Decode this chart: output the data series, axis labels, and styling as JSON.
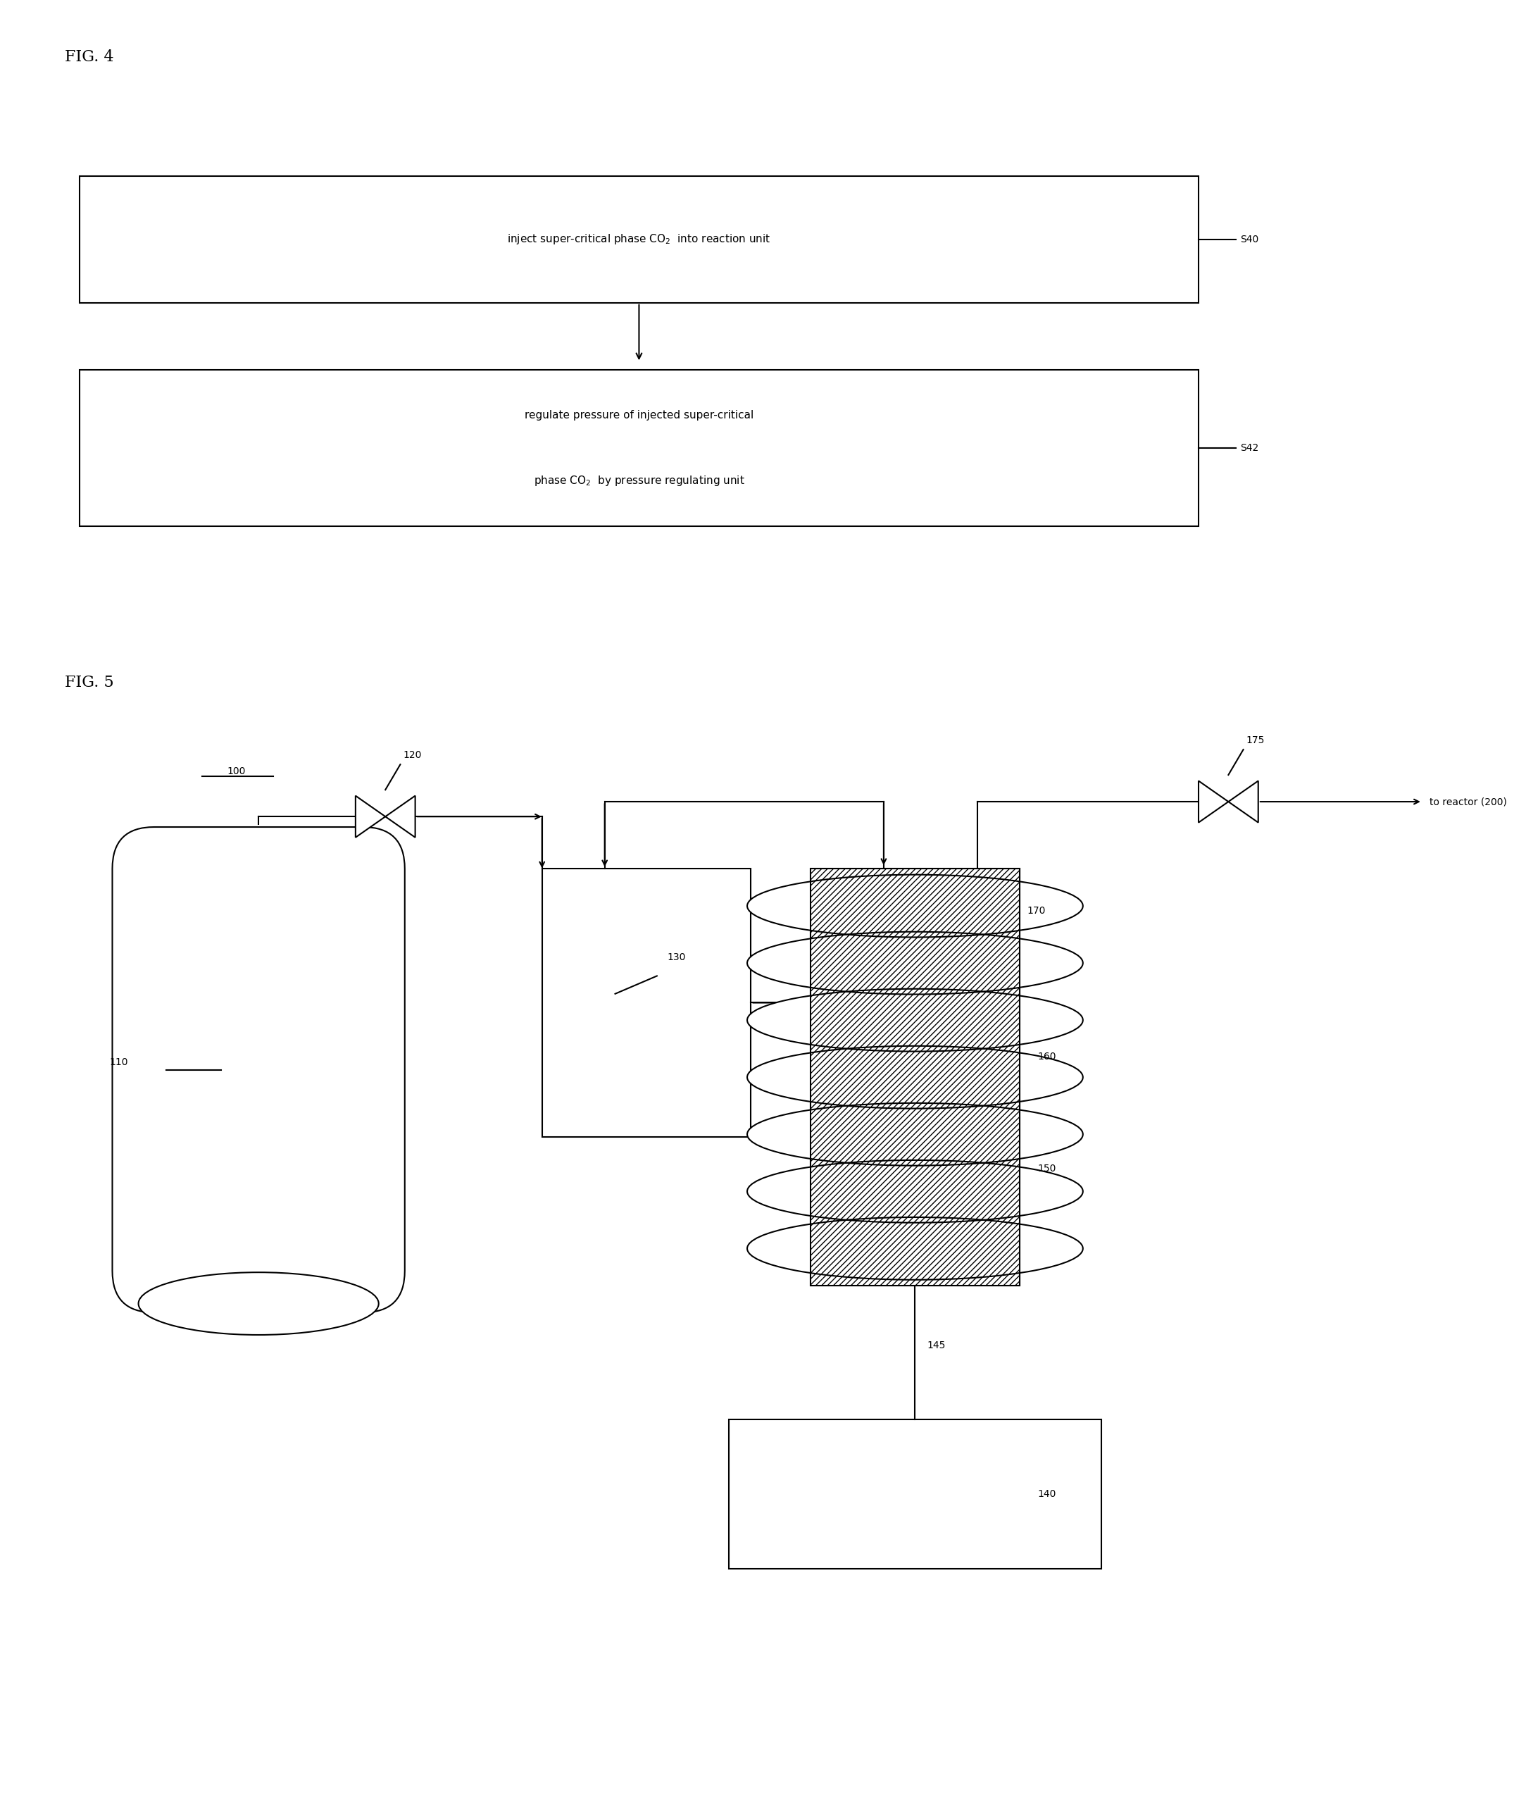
{
  "bg_color": "#ffffff",
  "fig4_label": "FIG. 4",
  "fig5_label": "FIG. 5",
  "box1_label": "S40",
  "box2_label": "S42",
  "label_100": "100",
  "label_110": "110",
  "label_120": "120",
  "label_130": "130",
  "label_140": "140",
  "label_145": "145",
  "label_150": "150",
  "label_160": "160",
  "label_170": "170",
  "label_175": "175",
  "label_200": "to reactor (200)"
}
